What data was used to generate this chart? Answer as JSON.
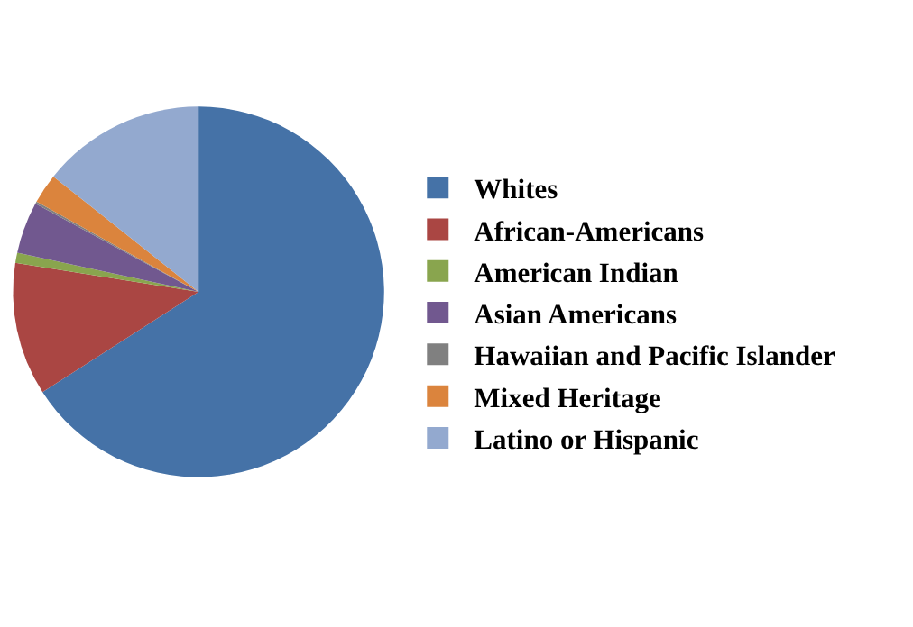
{
  "chart_data": {
    "type": "pie",
    "categories": [
      "Whites",
      "African-Americans",
      "American Indian",
      "Asian Americans",
      "Hawaiian and Pacific Islander",
      "Mixed Heritage",
      "Latino or Hispanic"
    ],
    "values": [
      65.9,
      11.6,
      0.9,
      4.5,
      0.2,
      2.6,
      14.3
    ],
    "colors": [
      "#4572a7",
      "#aa4643",
      "#89a54e",
      "#71588f",
      "#808080",
      "#db843d",
      "#93a9cf"
    ],
    "legend": "right"
  }
}
